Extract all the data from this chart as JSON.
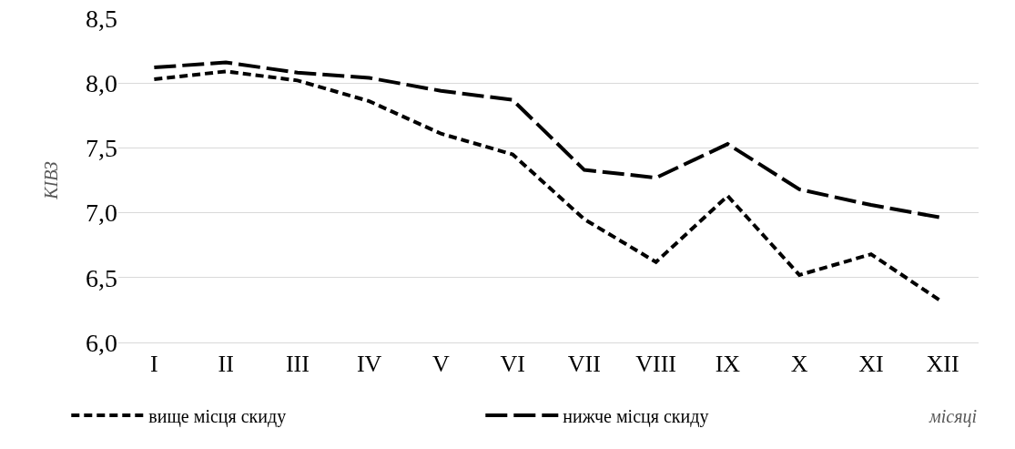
{
  "chart_data": {
    "type": "line",
    "ylabel": "КІВЗ",
    "xlabel": "місяці",
    "categories": [
      "I",
      "II",
      "III",
      "IV",
      "V",
      "VI",
      "VII",
      "VIII",
      "IX",
      "X",
      "XI",
      "XII"
    ],
    "series": [
      {
        "name": "вище місця скиду",
        "color": "#000000",
        "line_style": "dashed",
        "values": [
          8.03,
          8.09,
          8.02,
          7.86,
          7.61,
          7.45,
          6.95,
          6.62,
          7.13,
          6.52,
          6.68,
          6.31
        ]
      },
      {
        "name": "нижче місця скиду",
        "color": "#000000",
        "line_style": "dashed",
        "values": [
          8.12,
          8.16,
          8.08,
          8.04,
          7.94,
          7.87,
          7.33,
          7.27,
          7.53,
          7.18,
          7.06,
          6.96
        ]
      }
    ],
    "ylim": [
      6.0,
      8.5
    ],
    "yticks": [
      {
        "value": 6.0,
        "label": "6,0"
      },
      {
        "value": 6.5,
        "label": "6,5"
      },
      {
        "value": 7.0,
        "label": "7,0"
      },
      {
        "value": 7.5,
        "label": "7,5"
      },
      {
        "value": 8.0,
        "label": "8,0"
      },
      {
        "value": 8.5,
        "label": "8,5"
      }
    ],
    "grid": "y",
    "legend": "bottom left",
    "marker": "none"
  }
}
